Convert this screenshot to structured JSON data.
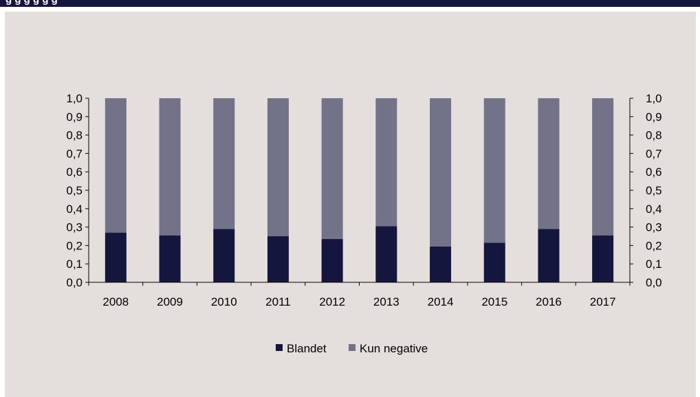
{
  "header": {
    "title_fragment": "g                                  g      g     g      g    g"
  },
  "colors": {
    "header_bg": "#15163e",
    "panel_bg": "#e4dedd",
    "blandet": "#15163e",
    "kun_negative": "#727288"
  },
  "chart_data": {
    "type": "bar",
    "stacked": true,
    "categories": [
      "2008",
      "2009",
      "2010",
      "2011",
      "2012",
      "2013",
      "2014",
      "2015",
      "2016",
      "2017"
    ],
    "series": [
      {
        "name": "Blandet",
        "values": [
          0.27,
          0.255,
          0.29,
          0.25,
          0.235,
          0.305,
          0.195,
          0.215,
          0.29,
          0.255
        ]
      },
      {
        "name": "Kun negative",
        "values": [
          0.73,
          0.745,
          0.71,
          0.75,
          0.765,
          0.695,
          0.805,
          0.785,
          0.71,
          0.745
        ]
      }
    ],
    "ylim": [
      0,
      1.0
    ],
    "yticks": [
      "0,0",
      "0,1",
      "0,2",
      "0,3",
      "0,4",
      "0,5",
      "0,6",
      "0,7",
      "0,8",
      "0,9",
      "1,0"
    ],
    "secondary_yaxis": true,
    "grid": false,
    "legend_position": "bottom"
  }
}
